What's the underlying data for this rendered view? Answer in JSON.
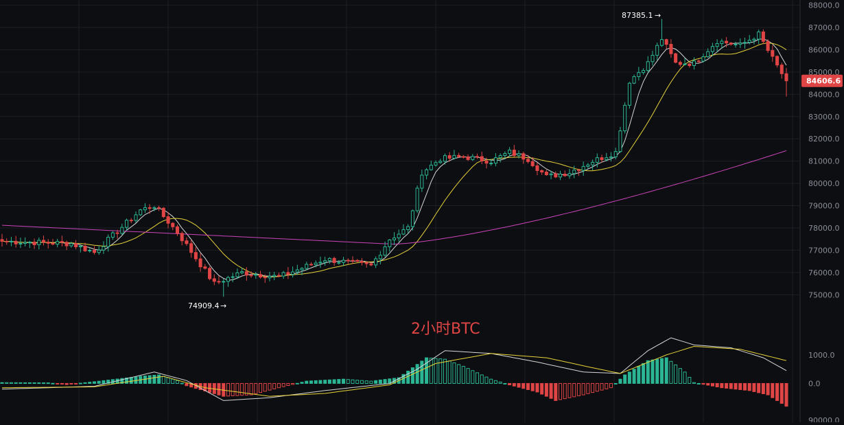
{
  "chart_data": {
    "type": "candlestick",
    "title": "2小时BTC",
    "theme": {
      "background": "#0d0e11",
      "grid": "#1c1f26",
      "up_color": "#2bb594",
      "down_color": "#e04545",
      "ma_white": "#d6d6d6",
      "ma_yellow": "#e8d23a",
      "ma_magenta": "#cc44bb",
      "macd_dif": "#d6d6d6",
      "macd_dea": "#e8d23a"
    },
    "price_axis": {
      "ticks": [
        "88000.0",
        "87000.0",
        "86000.0",
        "85000.0",
        "84000.0",
        "83000.0",
        "82000.0",
        "81000.0",
        "80000.0",
        "79000.0",
        "78000.0",
        "77000.0",
        "76000.0",
        "75000.0"
      ],
      "range": [
        74300,
        88050
      ]
    },
    "last_price": {
      "label": "84606.6",
      "value": 84606.6,
      "color": "#e04545"
    },
    "annotations": [
      {
        "label": "87385.1",
        "value": 87385.1,
        "arrow": "→"
      },
      {
        "label": "74909.4",
        "value": 74909.4,
        "arrow": "→"
      }
    ],
    "key_points": [
      {
        "x": 0,
        "close": 77400
      },
      {
        "x": 15,
        "close": 77300
      },
      {
        "x": 20,
        "close": 76900
      },
      {
        "x": 30,
        "close": 78800
      },
      {
        "x": 33,
        "close": 79000
      },
      {
        "x": 38,
        "close": 77800
      },
      {
        "x": 46,
        "close": 75500
      },
      {
        "x": 52,
        "close": 76000
      },
      {
        "x": 60,
        "close": 75800
      },
      {
        "x": 70,
        "close": 76600
      },
      {
        "x": 80,
        "close": 76300
      },
      {
        "x": 84,
        "close": 77500
      },
      {
        "x": 88,
        "close": 78000
      },
      {
        "x": 91,
        "close": 80500
      },
      {
        "x": 95,
        "close": 81100
      },
      {
        "x": 100,
        "close": 81200
      },
      {
        "x": 106,
        "close": 81000
      },
      {
        "x": 110,
        "close": 81400
      },
      {
        "x": 114,
        "close": 81100
      },
      {
        "x": 118,
        "close": 80300
      },
      {
        "x": 123,
        "close": 80500
      },
      {
        "x": 128,
        "close": 81000
      },
      {
        "x": 133,
        "close": 81400
      },
      {
        "x": 136,
        "close": 84600
      },
      {
        "x": 140,
        "close": 85400
      },
      {
        "x": 143,
        "close": 86500
      },
      {
        "x": 146,
        "close": 85400
      },
      {
        "x": 150,
        "close": 85400
      },
      {
        "x": 155,
        "close": 86400
      },
      {
        "x": 160,
        "close": 86200
      },
      {
        "x": 164,
        "close": 86700
      },
      {
        "x": 167,
        "close": 85600
      },
      {
        "x": 170,
        "close": 84606.6
      }
    ],
    "macd": {
      "ticks": [
        "1000.0",
        "0.0",
        "90000.0"
      ],
      "range": [
        -1000,
        1600
      ],
      "histogram_points": [
        {
          "x": 0,
          "v": 30
        },
        {
          "x": 10,
          "v": 20
        },
        {
          "x": 14,
          "v": -40
        },
        {
          "x": 20,
          "v": 60
        },
        {
          "x": 30,
          "v": 250
        },
        {
          "x": 34,
          "v": 300
        },
        {
          "x": 38,
          "v": 100
        },
        {
          "x": 40,
          "v": -80
        },
        {
          "x": 48,
          "v": -450
        },
        {
          "x": 54,
          "v": -400
        },
        {
          "x": 60,
          "v": -150
        },
        {
          "x": 66,
          "v": 80
        },
        {
          "x": 74,
          "v": 150
        },
        {
          "x": 80,
          "v": 80
        },
        {
          "x": 86,
          "v": 200
        },
        {
          "x": 92,
          "v": 900
        },
        {
          "x": 96,
          "v": 850
        },
        {
          "x": 100,
          "v": 600
        },
        {
          "x": 106,
          "v": 150
        },
        {
          "x": 110,
          "v": -50
        },
        {
          "x": 116,
          "v": -300
        },
        {
          "x": 120,
          "v": -600
        },
        {
          "x": 126,
          "v": -400
        },
        {
          "x": 132,
          "v": -150
        },
        {
          "x": 135,
          "v": 300
        },
        {
          "x": 140,
          "v": 800
        },
        {
          "x": 144,
          "v": 900
        },
        {
          "x": 148,
          "v": 400
        },
        {
          "x": 150,
          "v": 30
        },
        {
          "x": 156,
          "v": -150
        },
        {
          "x": 162,
          "v": -250
        },
        {
          "x": 166,
          "v": -400
        },
        {
          "x": 170,
          "v": -800
        }
      ],
      "dif_points": [
        {
          "x": 0,
          "v": -200
        },
        {
          "x": 20,
          "v": -100
        },
        {
          "x": 33,
          "v": 400
        },
        {
          "x": 40,
          "v": 100
        },
        {
          "x": 48,
          "v": -600
        },
        {
          "x": 58,
          "v": -500
        },
        {
          "x": 70,
          "v": -250
        },
        {
          "x": 84,
          "v": 0
        },
        {
          "x": 90,
          "v": 500
        },
        {
          "x": 96,
          "v": 1150
        },
        {
          "x": 106,
          "v": 1050
        },
        {
          "x": 116,
          "v": 750
        },
        {
          "x": 126,
          "v": 400
        },
        {
          "x": 134,
          "v": 350
        },
        {
          "x": 140,
          "v": 1150
        },
        {
          "x": 145,
          "v": 1600
        },
        {
          "x": 150,
          "v": 1350
        },
        {
          "x": 158,
          "v": 1250
        },
        {
          "x": 165,
          "v": 900
        },
        {
          "x": 170,
          "v": 450
        }
      ],
      "dea_points": [
        {
          "x": 0,
          "v": -150
        },
        {
          "x": 20,
          "v": -120
        },
        {
          "x": 35,
          "v": 250
        },
        {
          "x": 44,
          "v": -150
        },
        {
          "x": 58,
          "v": -450
        },
        {
          "x": 70,
          "v": -350
        },
        {
          "x": 84,
          "v": -50
        },
        {
          "x": 94,
          "v": 700
        },
        {
          "x": 106,
          "v": 1050
        },
        {
          "x": 118,
          "v": 900
        },
        {
          "x": 128,
          "v": 550
        },
        {
          "x": 134,
          "v": 350
        },
        {
          "x": 144,
          "v": 1000
        },
        {
          "x": 150,
          "v": 1300
        },
        {
          "x": 160,
          "v": 1200
        },
        {
          "x": 170,
          "v": 800
        }
      ]
    }
  }
}
